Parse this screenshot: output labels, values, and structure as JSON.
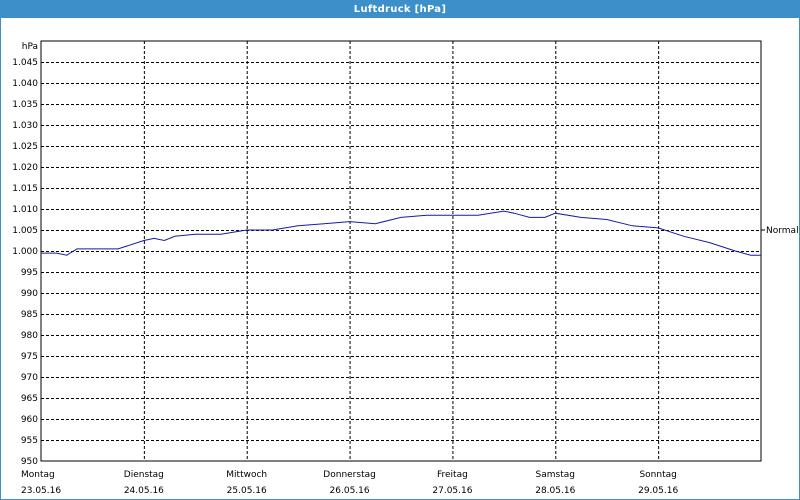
{
  "window": {
    "title": "Luftdruck [hPa]"
  },
  "colors": {
    "title_bar": "#3d8fc9",
    "series": "#1a1aa8",
    "grid": "#000000"
  },
  "chart_data": {
    "type": "line",
    "title": "Luftdruck [hPa]",
    "ylabel": "hPa",
    "xlabel": "",
    "ylim": [
      950,
      1050
    ],
    "y_ticks": [
      950,
      955,
      960,
      965,
      970,
      975,
      980,
      985,
      990,
      995,
      1000,
      1005,
      1010,
      1015,
      1020,
      1025,
      1030,
      1035,
      1040,
      1045
    ],
    "y_tick_labels": [
      "950",
      "955",
      "960",
      "965",
      "970",
      "975",
      "980",
      "985",
      "990",
      "995",
      "1.000",
      "1.005",
      "1.010",
      "1.015",
      "1.020",
      "1.025",
      "1.030",
      "1.035",
      "1.040",
      "1.045"
    ],
    "x_range_days": 7,
    "x_categories": [
      {
        "day": "Montag",
        "date": "23.05.16"
      },
      {
        "day": "Dienstag",
        "date": "24.05.16"
      },
      {
        "day": "Mittwoch",
        "date": "25.05.16"
      },
      {
        "day": "Donnerstag",
        "date": "26.05.16"
      },
      {
        "day": "Freitag",
        "date": "27.05.16"
      },
      {
        "day": "Samstag",
        "date": "28.05.16"
      },
      {
        "day": "Sonntag",
        "date": "29.05.16"
      }
    ],
    "reference_line": {
      "label": "Normal",
      "value": 1005
    },
    "grid": true,
    "series": [
      {
        "x": [
          0,
          0.15,
          0.25,
          0.35,
          0.5,
          0.75,
          1.0,
          1.1,
          1.2,
          1.3,
          1.5,
          1.75,
          2.0,
          2.25,
          2.5,
          2.75,
          3.0,
          3.25,
          3.5,
          3.75,
          4.0,
          4.25,
          4.5,
          4.6,
          4.75,
          4.9,
          5.0,
          5.25,
          5.5,
          5.75,
          6.0,
          6.25,
          6.5,
          6.75,
          6.9,
          7.0
        ],
        "y": [
          999.5,
          999.5,
          999.0,
          1000.5,
          1000.5,
          1000.5,
          1002.5,
          1003.0,
          1002.5,
          1003.5,
          1004.0,
          1004.0,
          1005.0,
          1005.0,
          1006.0,
          1006.5,
          1007.0,
          1006.5,
          1008.0,
          1008.5,
          1008.5,
          1008.5,
          1009.5,
          1009.0,
          1008.0,
          1008.0,
          1009.0,
          1008.0,
          1007.5,
          1006.0,
          1005.5,
          1003.5,
          1002.0,
          1000.0,
          999.0,
          999.0
        ]
      }
    ]
  }
}
